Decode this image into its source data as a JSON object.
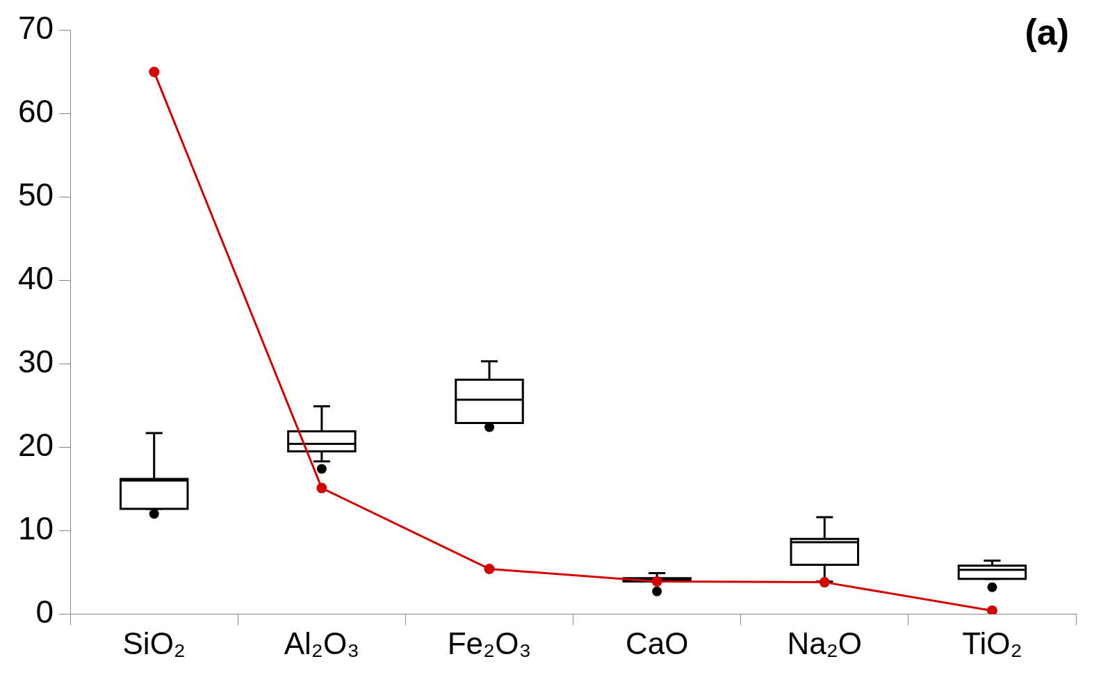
{
  "chart_data": {
    "type": "box",
    "categories": [
      "SiO₂",
      "Al₂O₃",
      "Fe₂O₃",
      "CaO",
      "Na₂O",
      "TiO₂"
    ],
    "boxes": [
      {
        "low": 12.6,
        "q1": 12.6,
        "median": 16.0,
        "q3": 16.2,
        "high": 21.7,
        "outliers": [
          12.0
        ]
      },
      {
        "low": 18.3,
        "q1": 19.5,
        "median": 20.4,
        "q3": 21.9,
        "high": 24.9,
        "outliers": [
          17.4
        ]
      },
      {
        "low": 22.9,
        "q1": 22.9,
        "median": 25.7,
        "q3": 28.1,
        "high": 30.3,
        "outliers": [
          22.4
        ]
      },
      {
        "low": 3.9,
        "q1": 3.9,
        "median": 4.1,
        "q3": 4.3,
        "high": 4.9,
        "outliers": [
          2.7
        ]
      },
      {
        "low": 3.9,
        "q1": 5.9,
        "median": 8.6,
        "q3": 9.0,
        "high": 11.6
      },
      {
        "low": 4.2,
        "q1": 4.2,
        "median": 5.3,
        "q3": 5.8,
        "high": 6.4,
        "outliers": [
          3.2
        ]
      }
    ],
    "series": [
      {
        "type": "line",
        "color": "#d40000",
        "values": [
          65.0,
          15.1,
          5.4,
          3.9,
          3.8,
          0.4
        ]
      }
    ],
    "marker": "circle",
    "ylim": [
      0,
      70
    ],
    "yticks": [
      0,
      10,
      20,
      30,
      40,
      50,
      60,
      70
    ],
    "grid": false,
    "annotations": [
      "(a)"
    ]
  }
}
